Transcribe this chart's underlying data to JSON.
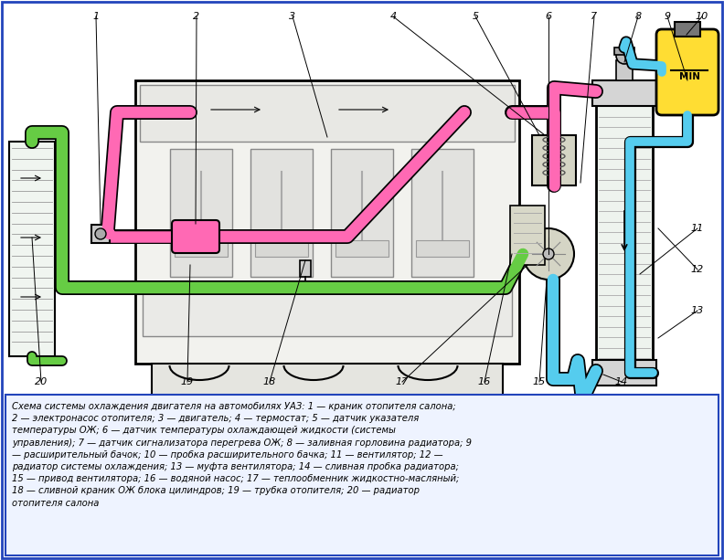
{
  "description": "Схема системы охлаждения двигателя на автомобилях УАЗ: 1 — краник отопителя салона;\n2 — электронасос отопителя; 3 — двигатель; 4 — термостат; 5 — датчик указателя\nтемпературы ОЖ; 6 — датчик температуры охлаждающей жидкости (системы\nуправления); 7 — датчик сигнализатора перегрева ОЖ; 8 — заливная горловина радиатора; 9\n— расширительный бачок; 10 — пробка расширительного бачка; 11 — вентилятор; 12 —\nрадиатор системы охлаждения; 13 — муфта вентилятора; 14 — сливная пробка радиатора;\n15 — привод вентилятора; 16 — водяной насос; 17 — теплообменник жидкостно-масляный;\n18 — сливной краник ОЖ блока цилиндров; 19 — трубка отопителя; 20 — радиатор\nотопителя салона",
  "pink": "#FF69B4",
  "green": "#66CC44",
  "cyan": "#55CCEE",
  "yellow": "#FFDD33",
  "border_blue": "#2244bb",
  "text_box_bg": "#EEF3FF"
}
